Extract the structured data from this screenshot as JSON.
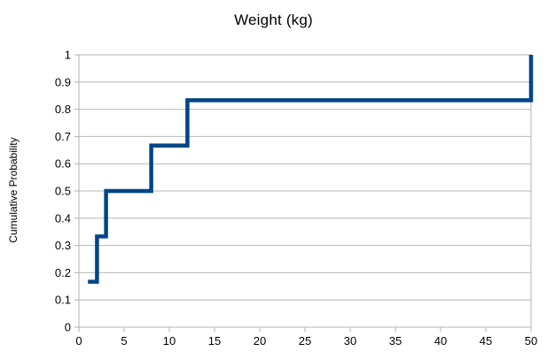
{
  "chart_data": {
    "type": "line",
    "subtype": "step-ecdf",
    "title": "Weight (kg)",
    "xlabel": "",
    "ylabel": "Cumulative Probability",
    "x_values": [
      1,
      2,
      3,
      8,
      12,
      50
    ],
    "cumulative_probabilities": [
      0.1667,
      0.3333,
      0.5,
      0.6667,
      0.8333,
      1.0
    ],
    "xlim": [
      0,
      50
    ],
    "ylim": [
      0,
      1
    ],
    "x_tick_labels": [
      "0",
      "5",
      "10",
      "15",
      "20",
      "25",
      "30",
      "35",
      "40",
      "45",
      "50"
    ],
    "y_tick_labels": [
      "0",
      "0.1",
      "0.2",
      "0.3",
      "0.4",
      "0.5",
      "0.6",
      "0.7",
      "0.8",
      "0.9",
      "1"
    ],
    "grid": "horizontal",
    "legend": "none",
    "line_color": "#004586",
    "line_width": 4.5,
    "grid_color": "#b8b8b8",
    "axis_color": "#b3b3b3",
    "text_color": "#000000",
    "background": "#ffffff"
  }
}
